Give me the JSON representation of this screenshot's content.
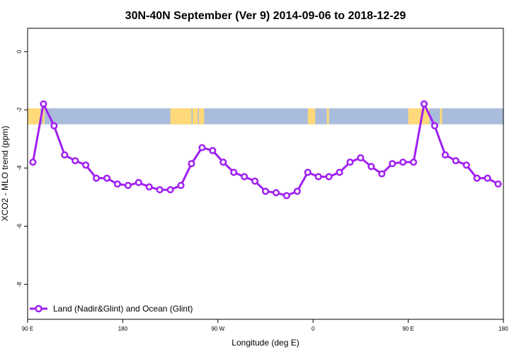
{
  "chart_data": {
    "type": "line",
    "title": "30N-40N September (Ver 9)   2014-09-06 to 2018-12-29",
    "xlabel": "Longitude (deg E)",
    "ylabel": "XCO2 - MLO trend (ppm)",
    "xlim": [
      90,
      540
    ],
    "ylim": [
      -9.2,
      0.8
    ],
    "x_ticks": [
      {
        "value": 90,
        "label": "90 E"
      },
      {
        "value": 180,
        "label": "180"
      },
      {
        "value": 270,
        "label": "90 W"
      },
      {
        "value": 360,
        "label": "0"
      },
      {
        "value": 450,
        "label": "90 E"
      },
      {
        "value": 540,
        "label": "180"
      }
    ],
    "y_ticks": [
      0,
      -2,
      -4,
      -6,
      -8
    ],
    "grid": false,
    "legend_position": "bottom-left",
    "map_strip": {
      "y_top": -1.95,
      "y_bottom": -2.5,
      "land_color": "#FFD97A",
      "ocean_color": "#A9BCDB"
    },
    "series": [
      {
        "name": "Land (Nadir&Glint) and Ocean (Glint)",
        "color": "#A020F0",
        "x": [
          95,
          105,
          115,
          125,
          135,
          145,
          155,
          165,
          175,
          185,
          195,
          205,
          215,
          225,
          235,
          245,
          255,
          265,
          275,
          285,
          295,
          305,
          315,
          325,
          335,
          345,
          355,
          365,
          375,
          385,
          395,
          405,
          415,
          425,
          435,
          445,
          455,
          465,
          475,
          485,
          495,
          505,
          515,
          525,
          535
        ],
        "y": [
          -3.8,
          -1.8,
          -2.55,
          -3.55,
          -3.75,
          -3.9,
          -4.35,
          -4.35,
          -4.55,
          -4.6,
          -4.5,
          -4.65,
          -4.75,
          -4.75,
          -4.6,
          -3.85,
          -3.3,
          -3.4,
          -3.8,
          -4.15,
          -4.3,
          -4.45,
          -4.8,
          -4.85,
          -4.95,
          -4.8,
          -4.15,
          -4.3,
          -4.3,
          -4.15,
          -3.8,
          -3.65,
          -3.95,
          -4.2,
          -3.85,
          -3.8,
          -3.8,
          -1.8,
          -2.55,
          -3.55,
          -3.75,
          -3.9,
          -4.35,
          -4.35,
          -4.55
        ]
      }
    ]
  }
}
